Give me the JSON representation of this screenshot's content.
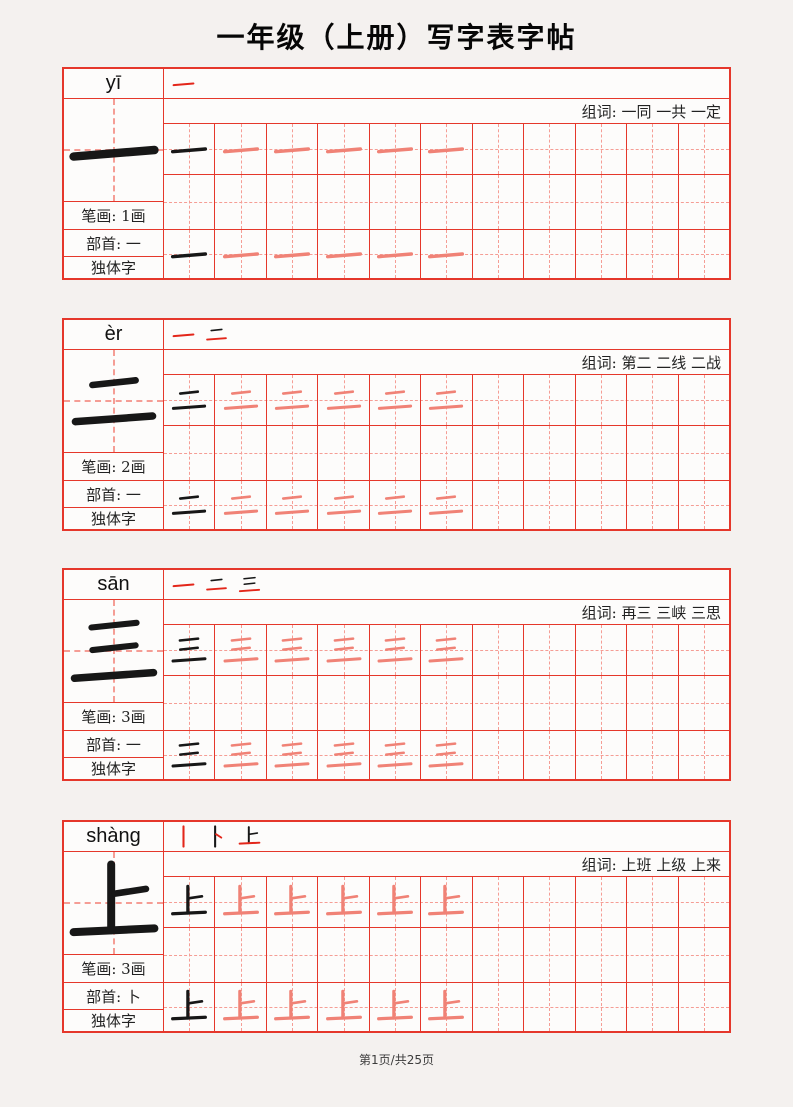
{
  "page": {
    "title": "一年级（上册）写字表字帖",
    "footer": "第1页/共25页"
  },
  "colors": {
    "border": "#e5372b",
    "guide": "#f59d95",
    "trace": "#f08276",
    "ink": "#171717",
    "stroke_red": "#e3261a"
  },
  "layout": {
    "columns": 11,
    "trace_copies": 5
  },
  "blocks": [
    {
      "char": "一",
      "pinyin": "yī",
      "steps": [
        "一"
      ],
      "zuci": "组词: 一同 一共 一定",
      "stroke_count": "笔画: 1画",
      "radical": "部首: 一",
      "char_type": "独体字"
    },
    {
      "char": "二",
      "pinyin": "èr",
      "steps": [
        "一",
        "二"
      ],
      "zuci": "组词: 第二 二线 二战",
      "stroke_count": "笔画: 2画",
      "radical": "部首: 一",
      "char_type": "独体字"
    },
    {
      "char": "三",
      "pinyin": "sān",
      "steps": [
        "一",
        "二",
        "三"
      ],
      "zuci": "组词: 再三 三峡 三思",
      "stroke_count": "笔画: 3画",
      "radical": "部首: 一",
      "char_type": "独体字"
    },
    {
      "char": "上",
      "pinyin": "shàng",
      "steps": [
        "丨",
        "卜",
        "上"
      ],
      "zuci": "组词: 上班 上级 上来",
      "stroke_count": "笔画: 3画",
      "radical": "部首: 卜",
      "char_type": "独体字"
    }
  ]
}
